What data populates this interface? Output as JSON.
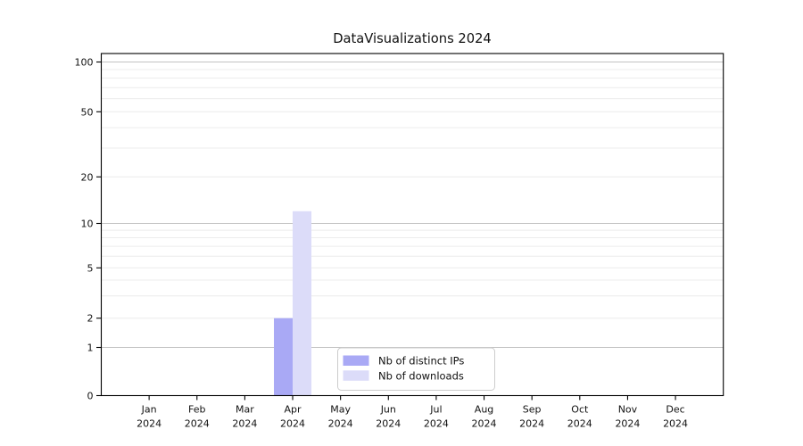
{
  "chart_data": {
    "type": "bar",
    "title": "DataVisualizations 2024",
    "xlabel": "",
    "ylabel": "",
    "categories": [
      "Jan",
      "Feb",
      "Mar",
      "Apr",
      "May",
      "Jun",
      "Jul",
      "Aug",
      "Sep",
      "Oct",
      "Nov",
      "Dec"
    ],
    "category_year": "2024",
    "series": [
      {
        "name": "Nb of distinct IPs",
        "color": "#a9a9f5",
        "values": [
          0,
          0,
          0,
          2,
          0,
          0,
          0,
          0,
          0,
          0,
          0,
          0
        ]
      },
      {
        "name": "Nb of downloads",
        "color": "#dcdcf9",
        "values": [
          0,
          0,
          0,
          12,
          0,
          0,
          0,
          0,
          0,
          0,
          0,
          0
        ]
      }
    ],
    "y_scale": "symlog",
    "y_ticks": [
      0,
      1,
      2,
      5,
      10,
      20,
      50,
      100
    ],
    "ylim": [
      0,
      113
    ],
    "grid": true,
    "legend_position": "lower center"
  },
  "colors": {
    "spine": "#000000",
    "grid_major": "#c3c3c3",
    "grid_minor": "#ececec",
    "legend_border": "#cccccc",
    "legend_bg": "#ffffff",
    "text": "#111111"
  }
}
